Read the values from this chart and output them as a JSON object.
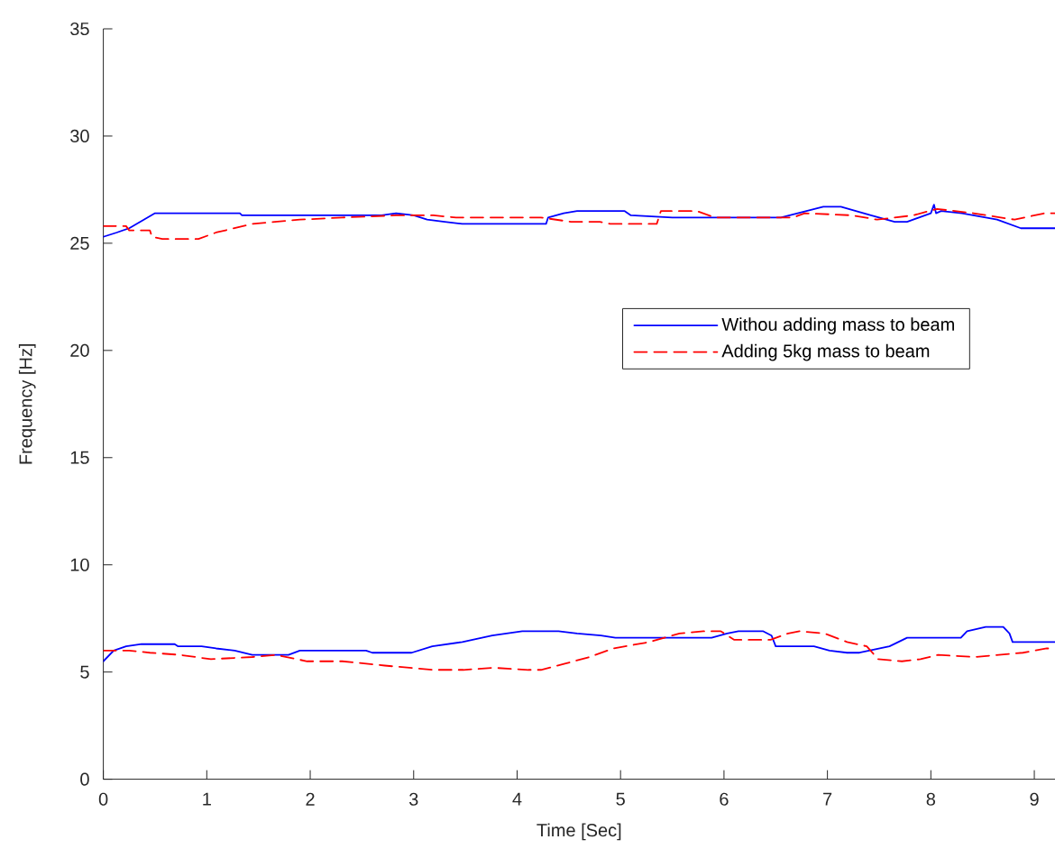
{
  "chart_data": {
    "type": "line",
    "xlabel": "Time [Sec]",
    "ylabel": "Frequency [Hz]",
    "xlim": [
      0,
      9.2
    ],
    "ylim": [
      0,
      35
    ],
    "xticks": [
      0,
      1,
      2,
      3,
      4,
      5,
      6,
      7,
      8,
      9
    ],
    "yticks": [
      0,
      5,
      10,
      15,
      20,
      25,
      30,
      35
    ],
    "legend": "right",
    "series": [
      {
        "name": "Withou adding mass to beam",
        "color": "#0000ff",
        "line_style": "solid",
        "x": [
          0,
          0.13,
          0.25,
          0.5,
          1.32,
          1.34,
          2.69,
          2.83,
          3.0,
          3.13,
          3.3,
          3.47,
          4.28,
          4.3,
          4.45,
          4.58,
          5.04,
          5.1,
          5.5,
          6.55,
          6.96,
          7.13,
          7.42,
          7.65,
          7.77,
          8.0,
          8.03,
          8.05,
          8.1,
          8.3,
          8.64,
          8.87,
          9.2
        ],
        "values": [
          25.3,
          25.5,
          25.7,
          26.4,
          26.4,
          26.3,
          26.3,
          26.4,
          26.3,
          26.1,
          26.0,
          25.9,
          25.9,
          26.2,
          26.4,
          26.5,
          26.5,
          26.3,
          26.2,
          26.2,
          26.7,
          26.7,
          26.3,
          26.0,
          26.0,
          26.4,
          26.8,
          26.4,
          26.5,
          26.4,
          26.1,
          25.7,
          25.7
        ]
      },
      {
        "name": "Adding 5kg mass to beam",
        "color": "#ff0000",
        "line_style": "dashed",
        "x": [
          0,
          0.22,
          0.25,
          0.45,
          0.47,
          0.57,
          0.92,
          1.09,
          1.44,
          1.9,
          2.31,
          2.83,
          3.19,
          3.41,
          3.76,
          4.23,
          4.52,
          4.8,
          4.9,
          5.35,
          5.39,
          5.74,
          5.91,
          6.67,
          6.78,
          7.24,
          7.48,
          7.83,
          8.06,
          8.41,
          8.81,
          9.1,
          9.2
        ],
        "values": [
          25.8,
          25.8,
          25.6,
          25.6,
          25.3,
          25.2,
          25.2,
          25.5,
          25.9,
          26.1,
          26.2,
          26.3,
          26.3,
          26.2,
          26.2,
          26.2,
          26.0,
          26.0,
          25.9,
          25.9,
          26.5,
          26.5,
          26.2,
          26.2,
          26.4,
          26.3,
          26.1,
          26.3,
          26.6,
          26.4,
          26.1,
          26.4,
          26.4
        ]
      },
      {
        "color": "#0000ff",
        "line_style": "solid",
        "x": [
          0,
          0.1,
          0.22,
          0.37,
          0.69,
          0.72,
          0.95,
          1.09,
          1.27,
          1.44,
          1.79,
          1.9,
          2.02,
          2.54,
          2.6,
          2.98,
          3.18,
          3.47,
          3.76,
          4.05,
          4.2,
          4.4,
          4.58,
          4.81,
          4.95,
          5.88,
          6.03,
          6.14,
          6.38,
          6.46,
          6.5,
          6.87,
          7.02,
          7.19,
          7.31,
          7.6,
          7.77,
          8.29,
          8.35,
          8.53,
          8.7,
          8.76,
          8.79,
          9.2
        ],
        "values": [
          5.5,
          6.0,
          6.2,
          6.3,
          6.3,
          6.2,
          6.2,
          6.1,
          6.0,
          5.8,
          5.8,
          6.0,
          6.0,
          6.0,
          5.9,
          5.9,
          6.2,
          6.4,
          6.7,
          6.9,
          6.9,
          6.9,
          6.8,
          6.7,
          6.6,
          6.6,
          6.8,
          6.9,
          6.9,
          6.7,
          6.2,
          6.2,
          6.0,
          5.9,
          5.9,
          6.2,
          6.6,
          6.6,
          6.9,
          7.1,
          7.1,
          6.8,
          6.4,
          6.4
        ]
      },
      {
        "color": "#ff0000",
        "line_style": "dashed",
        "x": [
          0,
          0.25,
          0.45,
          0.74,
          1.04,
          1.44,
          1.67,
          1.97,
          2.31,
          2.72,
          3.19,
          3.48,
          3.77,
          4.11,
          4.23,
          4.47,
          4.7,
          4.93,
          5.28,
          5.57,
          5.8,
          5.97,
          6.1,
          6.45,
          6.62,
          6.73,
          6.97,
          7.19,
          7.38,
          7.49,
          7.72,
          7.9,
          8.07,
          8.42,
          8.89,
          9.12,
          9.2
        ],
        "values": [
          6.0,
          6.0,
          5.9,
          5.8,
          5.6,
          5.7,
          5.8,
          5.5,
          5.5,
          5.3,
          5.1,
          5.1,
          5.2,
          5.1,
          5.1,
          5.4,
          5.7,
          6.1,
          6.4,
          6.8,
          6.9,
          6.9,
          6.5,
          6.5,
          6.8,
          6.9,
          6.8,
          6.4,
          6.2,
          5.6,
          5.5,
          5.6,
          5.8,
          5.7,
          5.9,
          6.1,
          6.1
        ]
      }
    ]
  }
}
